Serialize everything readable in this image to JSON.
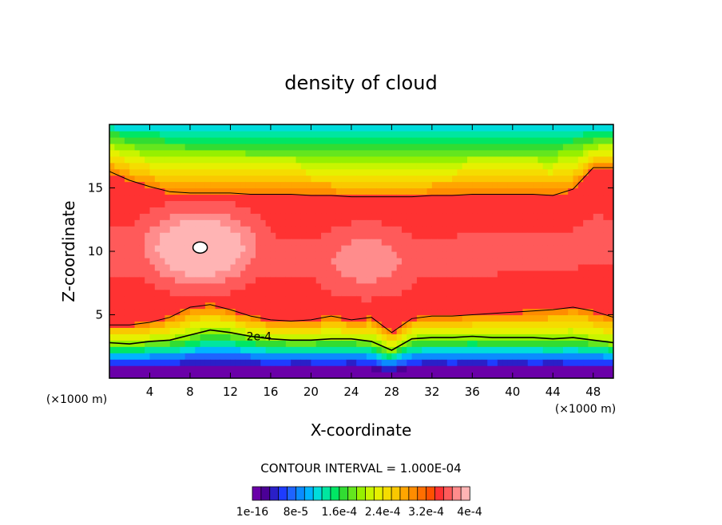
{
  "chart_data": {
    "type": "contour",
    "title": "density of cloud",
    "xlabel": "X-coordinate",
    "ylabel": "Z-coordinate",
    "x_unit": "(×1000 m)",
    "z_unit": "(×1000 m)",
    "xlim": [
      0,
      50
    ],
    "ylim": [
      0,
      20
    ],
    "x_ticks": [
      4,
      8,
      12,
      16,
      20,
      24,
      28,
      32,
      36,
      40,
      44,
      48
    ],
    "y_ticks": [
      5,
      10,
      15
    ],
    "contour_interval_text": "CONTOUR INTERVAL = 1.000E-04",
    "contour_label": "2e-4",
    "colorbar": {
      "tick_labels": [
        "1e-16",
        "8e-5",
        "1.6e-4",
        "2.4e-4",
        "3.2e-4",
        "4e-4"
      ],
      "tick_values": [
        0.0,
        8e-05,
        0.00016,
        0.00024,
        0.00032,
        0.0004
      ],
      "range": [
        0.0,
        0.0004
      ],
      "colors": [
        "#6a00a8",
        "#4b0096",
        "#2a1fc8",
        "#1e3cff",
        "#1e64ff",
        "#0a8cff",
        "#00b4ff",
        "#00dcdc",
        "#00e6a0",
        "#00e664",
        "#32dc32",
        "#64e61e",
        "#96f000",
        "#c8f500",
        "#e6f000",
        "#f5dc00",
        "#fac800",
        "#ffa500",
        "#ff8c00",
        "#ff6e00",
        "#ff5000",
        "#ff3232",
        "#ff5a5a",
        "#ff8c8c",
        "#ffb4b4"
      ]
    },
    "profiles": {
      "x": [
        0,
        2,
        4,
        6,
        8,
        10,
        12,
        14,
        16,
        18,
        20,
        22,
        24,
        26,
        28,
        30,
        32,
        34,
        36,
        38,
        40,
        42,
        44,
        46,
        48,
        50
      ],
      "cloud_base_km": [
        0.7,
        0.6,
        0.7,
        0.6,
        0.7,
        0.6,
        0.7,
        0.7,
        0.6,
        0.7,
        0.7,
        0.6,
        0.7,
        0.6,
        0.3,
        0.6,
        0.7,
        0.6,
        0.7,
        0.6,
        0.7,
        0.6,
        0.7,
        0.6,
        0.7,
        0.7
      ],
      "level_2e4_km": [
        2.8,
        2.7,
        2.9,
        3.0,
        3.4,
        3.8,
        3.6,
        3.3,
        3.1,
        3.0,
        3.0,
        3.1,
        3.1,
        2.9,
        2.2,
        3.1,
        3.2,
        3.2,
        3.3,
        3.2,
        3.2,
        3.2,
        3.1,
        3.2,
        3.0,
        2.8
      ],
      "level_3e4_low_km": [
        4.2,
        4.2,
        4.4,
        4.8,
        5.6,
        5.8,
        5.4,
        4.9,
        4.6,
        4.5,
        4.6,
        4.9,
        4.6,
        4.8,
        3.6,
        4.7,
        4.9,
        4.9,
        5.0,
        5.1,
        5.2,
        5.3,
        5.4,
        5.6,
        5.3,
        4.8
      ],
      "level_3e4_high_km": [
        16.3,
        15.6,
        15.1,
        14.7,
        14.6,
        14.6,
        14.6,
        14.5,
        14.5,
        14.5,
        14.4,
        14.4,
        14.3,
        14.3,
        14.3,
        14.3,
        14.4,
        14.4,
        14.5,
        14.5,
        14.5,
        14.5,
        14.4,
        14.9,
        16.6,
        16.6
      ],
      "cloud_top_km": [
        19.8,
        19.6,
        19.4,
        19.3,
        19.3,
        19.3,
        19.3,
        19.3,
        19.3,
        19.3,
        19.3,
        19.3,
        19.3,
        19.3,
        19.3,
        19.3,
        19.3,
        19.3,
        19.3,
        19.3,
        19.3,
        19.3,
        19.3,
        19.3,
        19.4,
        19.6
      ]
    },
    "maxima": [
      {
        "x": 9.0,
        "z": 10.3,
        "value": 0.00042
      },
      {
        "x": 25.5,
        "z": 9.3,
        "value": 0.00038
      }
    ]
  }
}
